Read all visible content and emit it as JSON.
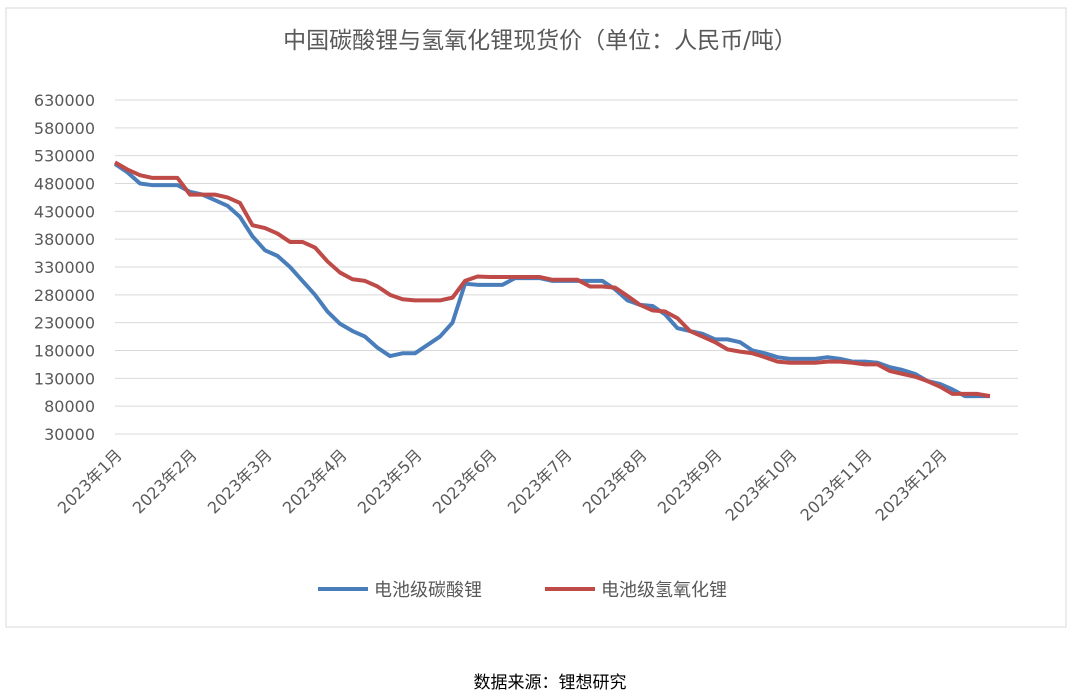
{
  "chart_data": {
    "type": "line",
    "title": "中国碳酸锂与氢氧化锂现货价（单位：人民币/吨）",
    "categories": [
      "2023年1月",
      null,
      null,
      null,
      null,
      null,
      "2023年2月",
      null,
      null,
      null,
      null,
      null,
      "2023年3月",
      null,
      null,
      null,
      null,
      null,
      "2023年4月",
      null,
      null,
      null,
      null,
      null,
      "2023年5月",
      null,
      null,
      null,
      null,
      null,
      "2023年6月",
      null,
      null,
      null,
      null,
      null,
      "2023年7月",
      null,
      null,
      null,
      null,
      null,
      "2023年8月",
      null,
      null,
      null,
      null,
      null,
      "2023年9月",
      null,
      null,
      null,
      null,
      null,
      "2023年10月",
      null,
      null,
      null,
      null,
      null,
      "2023年11月",
      null,
      null,
      null,
      null,
      null,
      "2023年12月",
      null,
      null,
      null,
      null
    ],
    "series": [
      {
        "name": "电池级碳酸锂",
        "color": "#4a7ebb",
        "values": [
          515000,
          500000,
          480000,
          477000,
          477000,
          477000,
          465000,
          460000,
          450000,
          440000,
          420000,
          385000,
          360000,
          350000,
          330000,
          305000,
          280000,
          250000,
          228000,
          215000,
          205000,
          185000,
          170000,
          175000,
          175000,
          190000,
          205000,
          230000,
          300000,
          298000,
          298000,
          298000,
          310000,
          310000,
          310000,
          305000,
          305000,
          305000,
          305000,
          305000,
          290000,
          270000,
          262000,
          260000,
          245000,
          220000,
          215000,
          210000,
          200000,
          200000,
          195000,
          180000,
          175000,
          168000,
          165000,
          165000,
          165000,
          168000,
          165000,
          160000,
          160000,
          158000,
          150000,
          145000,
          138000,
          125000,
          120000,
          110000,
          98000,
          98000,
          98000
        ]
      },
      {
        "name": "电池级氢氧化锂",
        "color": "#be4b48",
        "values": [
          518000,
          505000,
          495000,
          490000,
          490000,
          490000,
          460000,
          460000,
          460000,
          455000,
          445000,
          405000,
          400000,
          390000,
          375000,
          375000,
          365000,
          340000,
          320000,
          308000,
          305000,
          295000,
          280000,
          272000,
          270000,
          270000,
          270000,
          275000,
          305000,
          313000,
          312000,
          312000,
          312000,
          312000,
          312000,
          307000,
          307000,
          307000,
          295000,
          295000,
          293000,
          278000,
          262000,
          252000,
          250000,
          238000,
          215000,
          205000,
          195000,
          182000,
          178000,
          175000,
          168000,
          160000,
          158000,
          158000,
          158000,
          160000,
          160000,
          158000,
          155000,
          155000,
          143000,
          138000,
          133000,
          125000,
          115000,
          102000,
          102000,
          102000,
          98000
        ]
      }
    ],
    "ylim": [
      30000,
      630000
    ],
    "yticks": [
      30000,
      80000,
      130000,
      180000,
      230000,
      280000,
      330000,
      380000,
      430000,
      480000,
      530000,
      580000,
      630000
    ],
    "grid": true
  },
  "footer": "数据来源：锂想研究"
}
